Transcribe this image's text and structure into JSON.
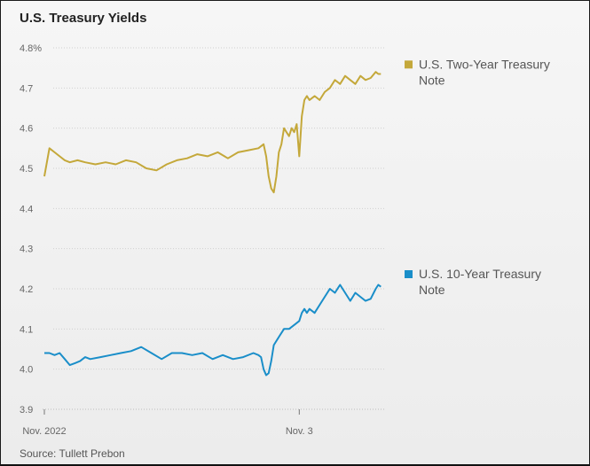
{
  "title": "U.S. Treasury Yields",
  "source": "Source: Tullett Prebon",
  "chart_data": {
    "type": "line",
    "title": "U.S. Treasury Yields",
    "ylim": [
      3.9,
      4.8
    ],
    "yticks": [
      "4.8%",
      "4.7",
      "4.6",
      "4.5",
      "4.4",
      "4.3",
      "4.2",
      "4.1",
      "4.0",
      "3.9"
    ],
    "ytick_values": [
      4.8,
      4.7,
      4.6,
      4.5,
      4.4,
      4.3,
      4.2,
      4.1,
      4.0,
      3.9
    ],
    "xticks": [
      "Nov. 2022",
      "Nov. 3"
    ],
    "xtick_positions": [
      0,
      100
    ],
    "xlim": [
      0,
      134
    ],
    "grid": "horizontal-dotted",
    "legend": "right",
    "series": [
      {
        "name": "U.S. Two-Year Treasury Note",
        "name_lines": [
          "U.S. Two-Year Treasury",
          "Note"
        ],
        "color": "#c4a83a",
        "x": [
          0,
          2,
          4,
          6,
          8,
          10,
          13,
          16,
          20,
          24,
          28,
          32,
          36,
          40,
          44,
          48,
          52,
          56,
          60,
          64,
          68,
          72,
          76,
          80,
          84,
          86,
          87,
          88,
          89,
          90,
          91,
          92,
          93,
          94,
          95,
          96,
          97,
          98,
          99,
          100,
          101,
          102,
          103,
          104,
          106,
          108,
          110,
          112,
          114,
          116,
          118,
          120,
          122,
          124,
          126,
          128,
          130,
          131,
          132
        ],
        "y": [
          4.48,
          4.55,
          4.54,
          4.53,
          4.52,
          4.515,
          4.52,
          4.515,
          4.51,
          4.515,
          4.51,
          4.52,
          4.515,
          4.5,
          4.495,
          4.51,
          4.52,
          4.525,
          4.535,
          4.53,
          4.54,
          4.525,
          4.54,
          4.545,
          4.55,
          4.56,
          4.53,
          4.48,
          4.45,
          4.44,
          4.48,
          4.54,
          4.56,
          4.6,
          4.59,
          4.58,
          4.6,
          4.59,
          4.61,
          4.53,
          4.63,
          4.67,
          4.68,
          4.67,
          4.68,
          4.67,
          4.69,
          4.7,
          4.72,
          4.71,
          4.73,
          4.72,
          4.71,
          4.73,
          4.72,
          4.725,
          4.74,
          4.735,
          4.735
        ]
      },
      {
        "name": "U.S. 10-Year Treasury Note",
        "name_lines": [
          "U.S. 10-Year Treasury",
          "Note"
        ],
        "color": "#1a8ec9",
        "x": [
          0,
          2,
          4,
          6,
          8,
          10,
          12,
          14,
          16,
          18,
          22,
          26,
          30,
          34,
          38,
          42,
          46,
          50,
          54,
          58,
          62,
          66,
          70,
          74,
          78,
          82,
          84,
          85,
          86,
          87,
          88,
          89,
          90,
          92,
          94,
          96,
          98,
          100,
          101,
          102,
          103,
          104,
          106,
          108,
          110,
          112,
          114,
          116,
          118,
          120,
          122,
          124,
          126,
          128,
          130,
          131,
          132
        ],
        "y": [
          4.04,
          4.04,
          4.035,
          4.04,
          4.025,
          4.01,
          4.015,
          4.02,
          4.03,
          4.025,
          4.03,
          4.035,
          4.04,
          4.045,
          4.055,
          4.04,
          4.025,
          4.04,
          4.04,
          4.035,
          4.04,
          4.025,
          4.035,
          4.025,
          4.03,
          4.04,
          4.035,
          4.03,
          4.0,
          3.985,
          3.99,
          4.02,
          4.06,
          4.08,
          4.1,
          4.1,
          4.11,
          4.12,
          4.14,
          4.15,
          4.14,
          4.15,
          4.14,
          4.16,
          4.18,
          4.2,
          4.19,
          4.21,
          4.19,
          4.17,
          4.19,
          4.18,
          4.17,
          4.175,
          4.2,
          4.21,
          4.205
        ]
      }
    ]
  }
}
